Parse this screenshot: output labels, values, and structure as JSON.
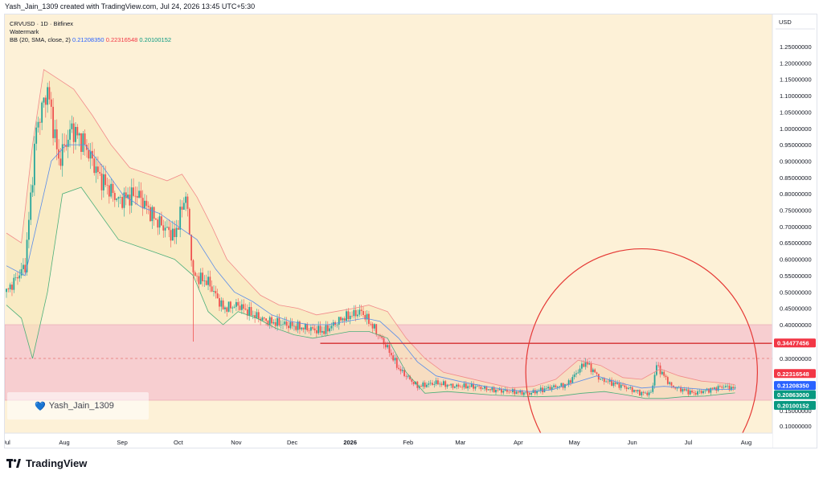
{
  "header": {
    "text": "Yash_Jain_1309 created with TradingView.com, Jul 24, 2026 13:45 UTC+5:30"
  },
  "legend": {
    "symbol": "CRVUSD · 1D · Bitfinex",
    "watermark": "Watermark",
    "bb_label": "BB (20, SMA, close, 2)",
    "bb_mid": "0.21208350",
    "bb_upper": "0.22316548",
    "bb_lower": "0.20100152"
  },
  "watermark_box": {
    "text": "Yash_Jain_1309"
  },
  "footer": {
    "brand": "TradingView"
  },
  "colors": {
    "background": "#fdf1d7",
    "zone": "#f4c1cd",
    "upper_band": "#f28a8a",
    "mid_band": "#5b8de8",
    "lower_band": "#4caf7a",
    "bull": "#26a69a",
    "bear": "#ef5350",
    "circle": "#e53935",
    "level": "#d32f2f"
  },
  "chart_data": {
    "type": "candlestick",
    "currency": "USD",
    "y_ticks": [
      "1.25000000",
      "1.20000000",
      "1.15000000",
      "1.10000000",
      "1.05000000",
      "1.00000000",
      "0.95000000",
      "0.90000000",
      "0.85000000",
      "0.80000000",
      "0.75000000",
      "0.70000000",
      "0.65000000",
      "0.60000000",
      "0.55000000",
      "0.50000000",
      "0.45000000",
      "0.40000000",
      "0.30000000",
      "0.15000000",
      "0.10000000"
    ],
    "y_tick_values": [
      1.25,
      1.2,
      1.15,
      1.1,
      1.05,
      1.0,
      0.95,
      0.9,
      0.85,
      0.8,
      0.75,
      0.7,
      0.65,
      0.6,
      0.55,
      0.5,
      0.45,
      0.4,
      0.3,
      0.15,
      0.1
    ],
    "x_ticks": [
      {
        "label": "Jul",
        "t": 0
      },
      {
        "label": "Aug",
        "t": 31
      },
      {
        "label": "Sep",
        "t": 62
      },
      {
        "label": "Oct",
        "t": 92
      },
      {
        "label": "Nov",
        "t": 123
      },
      {
        "label": "Dec",
        "t": 153
      },
      {
        "label": "2026",
        "t": 184
      },
      {
        "label": "Feb",
        "t": 215
      },
      {
        "label": "Mar",
        "t": 243
      },
      {
        "label": "Apr",
        "t": 274
      },
      {
        "label": "May",
        "t": 304
      },
      {
        "label": "Jun",
        "t": 335
      },
      {
        "label": "Jul",
        "t": 365
      },
      {
        "label": "Aug",
        "t": 396
      }
    ],
    "y_range": [
      0.07,
      1.3
    ],
    "t_range": [
      0,
      410
    ],
    "price_path": [
      [
        0,
        0.5
      ],
      [
        10,
        0.58
      ],
      [
        16,
        1.0
      ],
      [
        22,
        1.12
      ],
      [
        28,
        0.9
      ],
      [
        35,
        1.0
      ],
      [
        42,
        0.95
      ],
      [
        50,
        0.85
      ],
      [
        60,
        0.78
      ],
      [
        70,
        0.8
      ],
      [
        80,
        0.72
      ],
      [
        90,
        0.67
      ],
      [
        96,
        0.8
      ],
      [
        100,
        0.55
      ],
      [
        108,
        0.53
      ],
      [
        116,
        0.45
      ],
      [
        124,
        0.46
      ],
      [
        132,
        0.43
      ],
      [
        140,
        0.41
      ],
      [
        150,
        0.4
      ],
      [
        160,
        0.39
      ],
      [
        170,
        0.38
      ],
      [
        180,
        0.42
      ],
      [
        190,
        0.44
      ],
      [
        198,
        0.38
      ],
      [
        204,
        0.33
      ],
      [
        210,
        0.27
      ],
      [
        220,
        0.22
      ],
      [
        230,
        0.23
      ],
      [
        240,
        0.22
      ],
      [
        250,
        0.22
      ],
      [
        260,
        0.21
      ],
      [
        270,
        0.205
      ],
      [
        280,
        0.2
      ],
      [
        290,
        0.215
      ],
      [
        300,
        0.225
      ],
      [
        310,
        0.29
      ],
      [
        318,
        0.24
      ],
      [
        330,
        0.22
      ],
      [
        340,
        0.2
      ],
      [
        345,
        0.2
      ],
      [
        348,
        0.28
      ],
      [
        356,
        0.22
      ],
      [
        362,
        0.21
      ],
      [
        368,
        0.2
      ],
      [
        376,
        0.21
      ],
      [
        384,
        0.22
      ],
      [
        390,
        0.213
      ]
    ],
    "bb_upper_path": [
      [
        0,
        0.68
      ],
      [
        8,
        0.65
      ],
      [
        14,
        0.95
      ],
      [
        20,
        1.18
      ],
      [
        28,
        1.15
      ],
      [
        36,
        1.12
      ],
      [
        46,
        1.04
      ],
      [
        56,
        0.95
      ],
      [
        66,
        0.88
      ],
      [
        76,
        0.86
      ],
      [
        86,
        0.84
      ],
      [
        94,
        0.86
      ],
      [
        102,
        0.79
      ],
      [
        110,
        0.7
      ],
      [
        118,
        0.6
      ],
      [
        126,
        0.55
      ],
      [
        136,
        0.49
      ],
      [
        146,
        0.46
      ],
      [
        156,
        0.45
      ],
      [
        166,
        0.43
      ],
      [
        176,
        0.44
      ],
      [
        186,
        0.45
      ],
      [
        194,
        0.46
      ],
      [
        204,
        0.44
      ],
      [
        214,
        0.36
      ],
      [
        224,
        0.3
      ],
      [
        234,
        0.26
      ],
      [
        246,
        0.245
      ],
      [
        258,
        0.23
      ],
      [
        270,
        0.215
      ],
      [
        282,
        0.22
      ],
      [
        294,
        0.24
      ],
      [
        306,
        0.295
      ],
      [
        318,
        0.28
      ],
      [
        330,
        0.245
      ],
      [
        340,
        0.24
      ],
      [
        350,
        0.27
      ],
      [
        360,
        0.25
      ],
      [
        372,
        0.235
      ],
      [
        382,
        0.23
      ],
      [
        390,
        0.225
      ]
    ],
    "bb_mid_path": [
      [
        0,
        0.58
      ],
      [
        10,
        0.55
      ],
      [
        16,
        0.7
      ],
      [
        24,
        0.9
      ],
      [
        32,
        0.95
      ],
      [
        42,
        0.95
      ],
      [
        52,
        0.88
      ],
      [
        62,
        0.8
      ],
      [
        72,
        0.76
      ],
      [
        82,
        0.74
      ],
      [
        92,
        0.7
      ],
      [
        102,
        0.66
      ],
      [
        112,
        0.57
      ],
      [
        122,
        0.5
      ],
      [
        132,
        0.47
      ],
      [
        142,
        0.43
      ],
      [
        152,
        0.41
      ],
      [
        162,
        0.4
      ],
      [
        172,
        0.4
      ],
      [
        182,
        0.41
      ],
      [
        192,
        0.42
      ],
      [
        200,
        0.41
      ],
      [
        210,
        0.36
      ],
      [
        220,
        0.29
      ],
      [
        230,
        0.25
      ],
      [
        242,
        0.235
      ],
      [
        256,
        0.22
      ],
      [
        268,
        0.21
      ],
      [
        280,
        0.205
      ],
      [
        292,
        0.21
      ],
      [
        304,
        0.23
      ],
      [
        316,
        0.25
      ],
      [
        328,
        0.23
      ],
      [
        340,
        0.215
      ],
      [
        352,
        0.22
      ],
      [
        364,
        0.215
      ],
      [
        376,
        0.21
      ],
      [
        390,
        0.212
      ]
    ],
    "bb_lower_path": [
      [
        0,
        0.46
      ],
      [
        8,
        0.42
      ],
      [
        14,
        0.3
      ],
      [
        22,
        0.5
      ],
      [
        30,
        0.8
      ],
      [
        40,
        0.82
      ],
      [
        50,
        0.74
      ],
      [
        60,
        0.66
      ],
      [
        70,
        0.64
      ],
      [
        80,
        0.62
      ],
      [
        90,
        0.6
      ],
      [
        100,
        0.55
      ],
      [
        108,
        0.44
      ],
      [
        116,
        0.4
      ],
      [
        124,
        0.44
      ],
      [
        134,
        0.42
      ],
      [
        144,
        0.39
      ],
      [
        154,
        0.37
      ],
      [
        164,
        0.36
      ],
      [
        174,
        0.37
      ],
      [
        184,
        0.38
      ],
      [
        194,
        0.38
      ],
      [
        204,
        0.36
      ],
      [
        214,
        0.26
      ],
      [
        224,
        0.2
      ],
      [
        236,
        0.205
      ],
      [
        248,
        0.2
      ],
      [
        260,
        0.195
      ],
      [
        272,
        0.192
      ],
      [
        284,
        0.19
      ],
      [
        296,
        0.192
      ],
      [
        308,
        0.2
      ],
      [
        320,
        0.205
      ],
      [
        332,
        0.195
      ],
      [
        342,
        0.185
      ],
      [
        352,
        0.185
      ],
      [
        362,
        0.19
      ],
      [
        374,
        0.192
      ],
      [
        384,
        0.198
      ],
      [
        390,
        0.201
      ]
    ],
    "zone": {
      "top": 0.4,
      "bottom": 0.18
    },
    "dashed_level": 0.3,
    "level_line": {
      "value": 0.34477456,
      "t_start": 168,
      "t_end": 410
    },
    "circle": {
      "cx_t": 340,
      "cy": 0.26,
      "rx_t": 62,
      "ry": 0.37
    },
    "price_labels": [
      {
        "value": 0.34477456,
        "text": "0.34477456",
        "color": "#f23645"
      },
      {
        "value": 0.22316548,
        "text": "0.22316548",
        "color": "#f23645"
      },
      {
        "value": 0.2120835,
        "text": "0.21208350",
        "color": "#2962ff"
      },
      {
        "value": 0.20863,
        "text": "0.20863000",
        "color": "#089981"
      },
      {
        "value": 0.20100152,
        "text": "0.20100152",
        "color": "#089981"
      }
    ]
  }
}
